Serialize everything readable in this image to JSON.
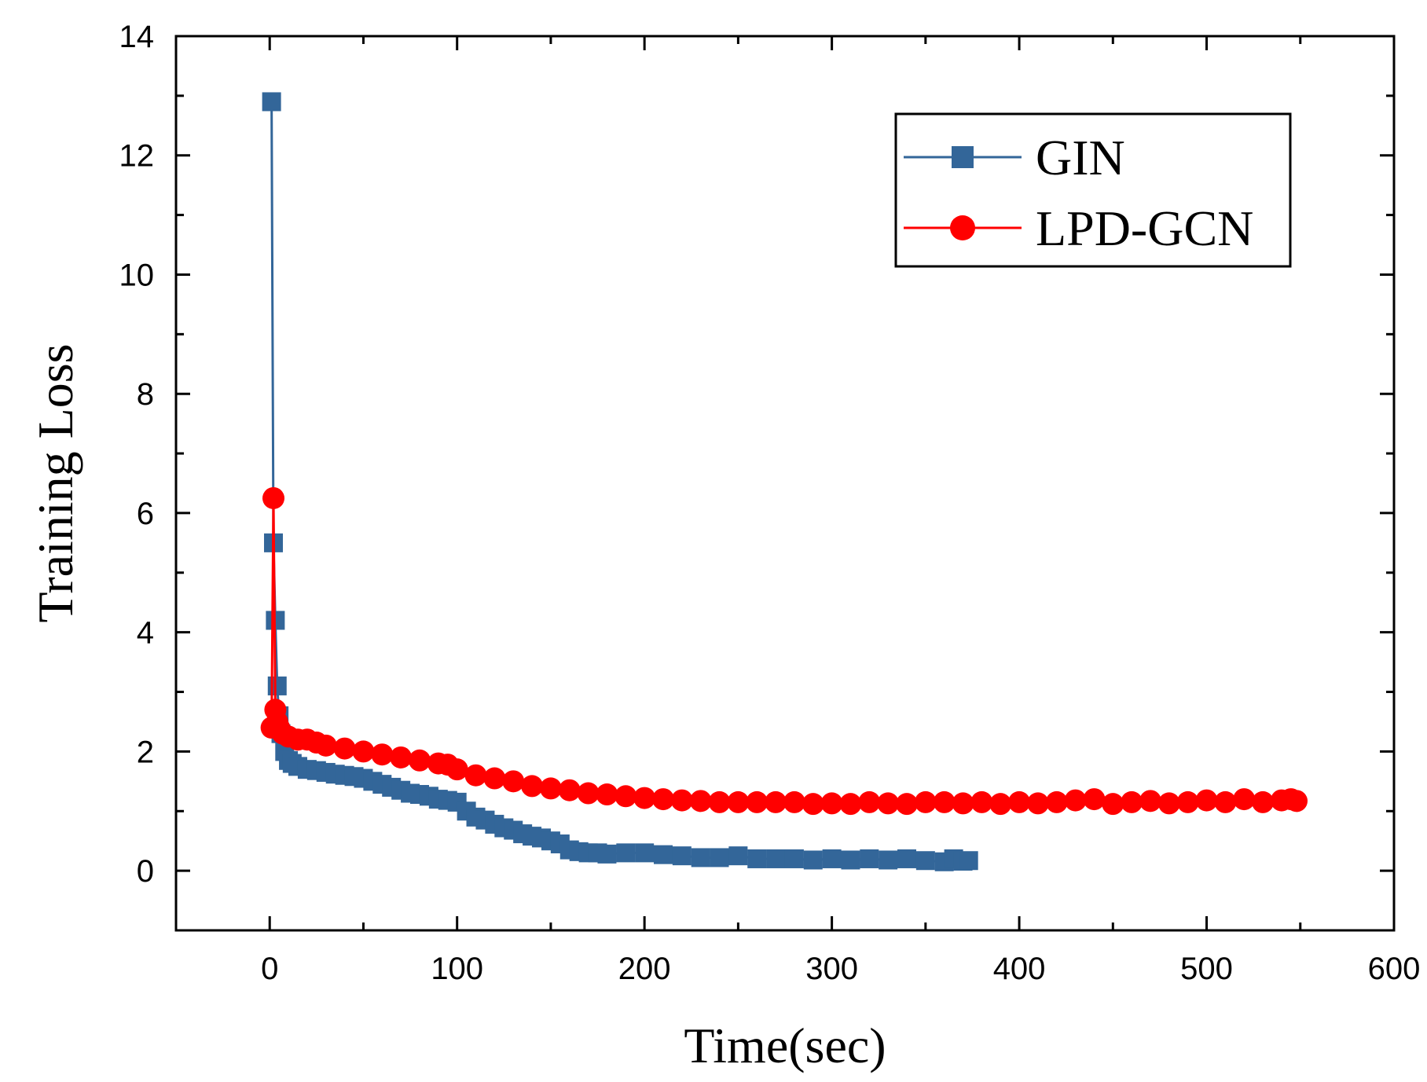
{
  "chart_data": {
    "type": "line",
    "title": "",
    "xlabel": "Time(sec)",
    "ylabel": "Training Loss",
    "xlim": [
      -50,
      600
    ],
    "ylim": [
      -1,
      14
    ],
    "xticks": [
      0,
      100,
      200,
      300,
      400,
      500,
      600
    ],
    "yticks": [
      0,
      2,
      4,
      6,
      8,
      10,
      12,
      14
    ],
    "xtick_labels": [
      "0",
      "100",
      "200",
      "300",
      "400",
      "500",
      "600"
    ],
    "ytick_labels": [
      "0",
      "2",
      "4",
      "6",
      "8",
      "10",
      "12",
      "14"
    ],
    "legend_position": "top-right",
    "series": [
      {
        "name": "GIN",
        "color": "#336699",
        "marker": "square",
        "x": [
          1,
          2,
          3,
          4,
          5,
          6,
          8,
          10,
          12,
          15,
          20,
          25,
          30,
          35,
          40,
          45,
          50,
          55,
          60,
          65,
          70,
          75,
          80,
          85,
          90,
          95,
          100,
          105,
          110,
          115,
          120,
          125,
          130,
          135,
          140,
          145,
          150,
          155,
          160,
          165,
          170,
          175,
          180,
          190,
          200,
          210,
          220,
          230,
          240,
          250,
          260,
          270,
          280,
          290,
          300,
          310,
          320,
          330,
          340,
          350,
          360,
          365,
          370,
          373
        ],
        "values": [
          12.9,
          5.5,
          4.2,
          3.1,
          2.6,
          2.3,
          2.0,
          1.85,
          1.8,
          1.75,
          1.7,
          1.68,
          1.65,
          1.62,
          1.6,
          1.58,
          1.55,
          1.5,
          1.45,
          1.4,
          1.35,
          1.3,
          1.28,
          1.25,
          1.2,
          1.18,
          1.15,
          1.0,
          0.9,
          0.85,
          0.78,
          0.72,
          0.68,
          0.62,
          0.58,
          0.55,
          0.5,
          0.45,
          0.35,
          0.32,
          0.3,
          0.3,
          0.28,
          0.3,
          0.3,
          0.27,
          0.25,
          0.22,
          0.22,
          0.25,
          0.2,
          0.2,
          0.2,
          0.18,
          0.2,
          0.18,
          0.2,
          0.18,
          0.2,
          0.17,
          0.15,
          0.2,
          0.16,
          0.17
        ]
      },
      {
        "name": "LPD-GCN",
        "color": "#ff0000",
        "marker": "circle",
        "x": [
          1,
          2,
          3,
          4,
          5,
          7,
          10,
          15,
          20,
          25,
          30,
          40,
          50,
          60,
          70,
          80,
          90,
          95,
          100,
          110,
          120,
          130,
          140,
          150,
          160,
          170,
          180,
          190,
          200,
          210,
          220,
          230,
          240,
          250,
          260,
          270,
          280,
          290,
          300,
          310,
          320,
          330,
          340,
          350,
          360,
          370,
          380,
          390,
          400,
          410,
          420,
          430,
          440,
          450,
          460,
          470,
          480,
          490,
          500,
          510,
          520,
          530,
          540,
          545,
          548
        ],
        "values": [
          2.4,
          6.25,
          2.7,
          2.5,
          2.4,
          2.3,
          2.25,
          2.2,
          2.2,
          2.15,
          2.1,
          2.05,
          2.0,
          1.95,
          1.9,
          1.85,
          1.8,
          1.78,
          1.7,
          1.6,
          1.55,
          1.5,
          1.42,
          1.38,
          1.35,
          1.3,
          1.28,
          1.25,
          1.22,
          1.2,
          1.18,
          1.17,
          1.15,
          1.15,
          1.15,
          1.15,
          1.15,
          1.12,
          1.13,
          1.12,
          1.15,
          1.13,
          1.12,
          1.15,
          1.15,
          1.13,
          1.15,
          1.12,
          1.15,
          1.13,
          1.15,
          1.18,
          1.2,
          1.12,
          1.15,
          1.17,
          1.13,
          1.15,
          1.18,
          1.15,
          1.2,
          1.15,
          1.18,
          1.2,
          1.17
        ]
      }
    ]
  }
}
